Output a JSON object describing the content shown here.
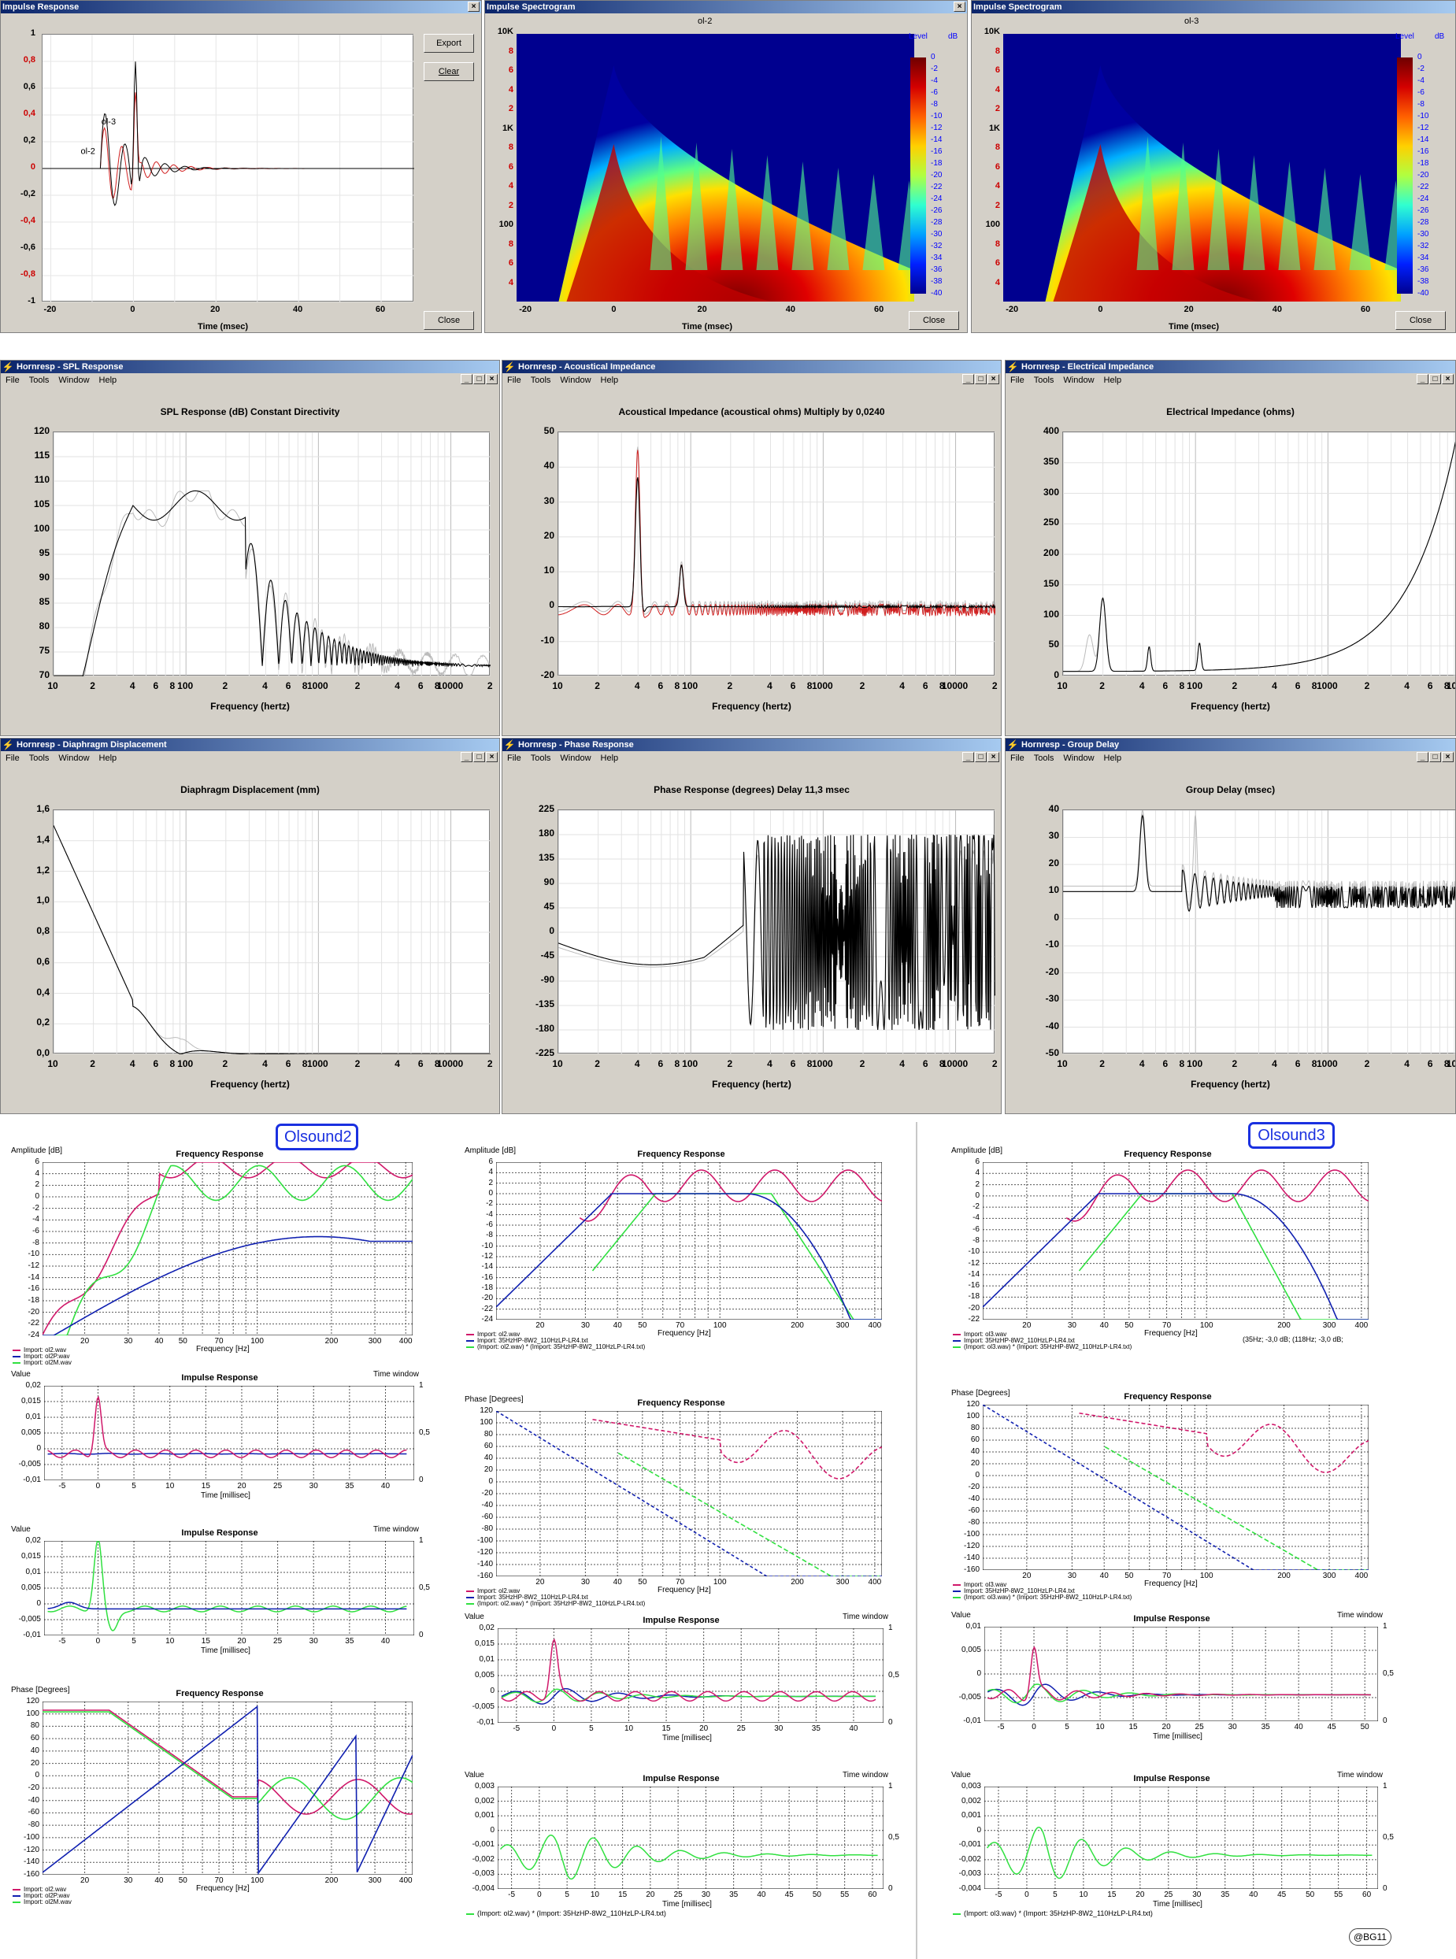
{
  "impulse_window": {
    "title": "Impulse Response",
    "export_label": "Export",
    "clear_label": "Clear",
    "close_label": "Close",
    "xlabel": "Time (msec)",
    "yticks": [
      "1",
      "0,8",
      "0,6",
      "0,4",
      "0,2",
      "0",
      "-0,2",
      "-0,4",
      "-0,6",
      "-0,8",
      "-1"
    ],
    "xticks": [
      "-20",
      "0",
      "20",
      "40",
      "60"
    ],
    "label_a": "ol-3",
    "label_b": "ol-2"
  },
  "spectro1": {
    "title": "Impulse Spectrogram",
    "chart_title": "ol-2",
    "xlabel": "Time (msec)",
    "close_label": "Close",
    "level_label": "Level",
    "db_label": "dB",
    "yticks": [
      "10K",
      "8",
      "6",
      "4",
      "2",
      "1K",
      "8",
      "6",
      "4",
      "2",
      "100",
      "8",
      "6",
      "4"
    ],
    "xticks": [
      "-20",
      "0",
      "20",
      "40",
      "60"
    ],
    "levels": [
      "0",
      "-2",
      "-4",
      "-6",
      "-8",
      "-10",
      "-12",
      "-14",
      "-16",
      "-18",
      "-20",
      "-22",
      "-24",
      "-26",
      "-28",
      "-30",
      "-32",
      "-34",
      "-36",
      "-38",
      "-40"
    ]
  },
  "spectro2": {
    "title": "Impulse Spectrogram",
    "chart_title": "ol-3",
    "xlabel": "Time (msec)",
    "close_label": "Close",
    "level_label": "Level",
    "db_label": "dB"
  },
  "menu": {
    "file": "File",
    "tools": "Tools",
    "window": "Window",
    "help": "Help"
  },
  "hr_common": {
    "xlabel": "Frequency (hertz)",
    "xticks": [
      "10",
      "2",
      "4",
      "6",
      "8",
      "100",
      "2",
      "4",
      "6",
      "8",
      "1000",
      "2",
      "4",
      "6",
      "8",
      "10000",
      "2"
    ]
  },
  "spl": {
    "title": "Hornresp - SPL Response",
    "chart_title": "SPL Response (dB)   Constant Directivity",
    "yticks": [
      "120",
      "115",
      "110",
      "105",
      "100",
      "95",
      "90",
      "85",
      "80",
      "75",
      "70"
    ]
  },
  "acoustic": {
    "title": "Hornresp - Acoustical Impedance",
    "chart_title": "Acoustical Impedance (acoustical ohms)   Multiply by 0,0240",
    "yticks": [
      "50",
      "40",
      "30",
      "20",
      "10",
      "0",
      "-10",
      "-20"
    ]
  },
  "electric": {
    "title": "Hornresp - Electrical Impedance",
    "chart_title": "Electrical Impedance (ohms)",
    "yticks": [
      "400",
      "350",
      "300",
      "250",
      "200",
      "150",
      "100",
      "50",
      "0"
    ]
  },
  "displacement": {
    "title": "Hornresp - Diaphragm Displacement",
    "chart_title": "Diaphragm Displacement (mm)",
    "yticks": [
      "1,6",
      "1,4",
      "1,2",
      "1,0",
      "0,8",
      "0,6",
      "0,4",
      "0,2",
      "0,0"
    ]
  },
  "phase": {
    "title": "Hornresp - Phase Response",
    "chart_title": "Phase Response (degrees)   Delay 11,3 msec",
    "yticks": [
      "225",
      "180",
      "135",
      "90",
      "45",
      "0",
      "-45",
      "-90",
      "-135",
      "-180",
      "-225"
    ]
  },
  "group": {
    "title": "Hornresp - Group Delay",
    "chart_title": "Group Delay (msec)",
    "yticks": [
      "40",
      "30",
      "20",
      "10",
      "0",
      "-10",
      "-20",
      "-30",
      "-40",
      "-50"
    ]
  },
  "badges": {
    "olsound2": "Olsound2",
    "olsound3": "Olsound3"
  },
  "plots": {
    "freq_title": "Frequency Response",
    "imp_title": "Impulse Response",
    "amp_label": "Amplitude [dB]",
    "phase_label": "Phase [Degrees]",
    "value_label": "Value",
    "time_window": "Time window",
    "freq_axis": "Frequency [Hz]",
    "time_axis": "Time [millisec]",
    "amp_yticks": [
      "6",
      "4",
      "2",
      "0",
      "-2",
      "-4",
      "-6",
      "-8",
      "-10",
      "-12",
      "-14",
      "-16",
      "-18",
      "-20",
      "-22",
      "-24"
    ],
    "amp_yticks3": [
      "6",
      "4",
      "2",
      "0",
      "-2",
      "-4",
      "-6",
      "-8",
      "-10",
      "-12",
      "-14",
      "-16",
      "-18",
      "-20",
      "-22"
    ],
    "phase_yticks": [
      "120",
      "100",
      "80",
      "60",
      "40",
      "20",
      "0",
      "-20",
      "-40",
      "-60",
      "-80",
      "-100",
      "-120",
      "-140",
      "-160"
    ],
    "freq_xticks": [
      "20",
      "30",
      "40",
      "50",
      "70",
      "100",
      "200",
      "300",
      "400"
    ],
    "imp_yticks_a": [
      "0,02",
      "0,015",
      "0,01",
      "0,005",
      "0",
      "-0,005",
      "-0,01"
    ],
    "imp_yticks_b": [
      "0,003",
      "0,002",
      "0,001",
      "0",
      "-0,001",
      "-0,002",
      "-0,003",
      "-0,004"
    ],
    "tw_ticks": [
      "1",
      "0,5",
      "0"
    ],
    "t_xticks_40": [
      "-5",
      "0",
      "5",
      "10",
      "15",
      "20",
      "25",
      "30",
      "35",
      "40"
    ],
    "t_xticks_50": [
      "-5",
      "0",
      "5",
      "10",
      "15",
      "20",
      "25",
      "30",
      "35",
      "40",
      "45",
      "50"
    ],
    "t_xticks_60": [
      "-5",
      "0",
      "5",
      "10",
      "15",
      "20",
      "25",
      "30",
      "35",
      "40",
      "45",
      "50",
      "55",
      "60"
    ],
    "legend_o2": [
      "Import: ol2.wav",
      "Import: ol2P.wav",
      "Import: ol2M.wav"
    ],
    "legend_mid": [
      "Import: ol2.wav",
      "Import: 35HzHP-8W2_110HzLP-LR4.txt",
      "(Import: ol2.wav) * (Import: 35HzHP-8W2_110HzLP-LR4.txt)"
    ],
    "legend_o3": [
      "Import: ol3.wav",
      "Import: 35HzHP-8W2_110HzLP-LR4.txt",
      "(Import: ol3.wav) * (Import: 35HzHP-8W2_110HzLP-LR4.txt)"
    ],
    "note_o3": "(35Hz; -3,0 dB;        (118Hz; -3,0 dB;",
    "bottom_mid": "(Import: ol2.wav) * (Import: 35HzHP-8W2_110HzLP-LR4.txt)",
    "bottom_o3": "(Import: ol3.wav) * (Import: 35HzHP-8W2_110HzLP-LR4.txt)"
  },
  "signature": "@BG11",
  "colors": {
    "magenta": "#d0186a",
    "blue": "#1020b0",
    "green": "#30e040",
    "red": "#d02020"
  }
}
